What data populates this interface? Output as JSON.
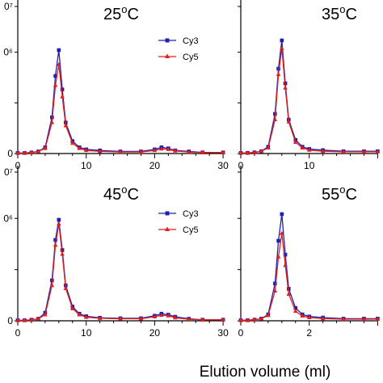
{
  "colors": {
    "cy3": "#1f1fb4",
    "cy5": "#e0201b",
    "axis": "#000000"
  },
  "figure": {
    "xlabel": "Elution volume (ml)"
  },
  "chart_data": [
    {
      "type": "line",
      "title_num": "25",
      "title_deg": "o",
      "title_unit": "C",
      "legend": [
        "Cy3",
        "Cy5"
      ],
      "xlim": [
        0,
        30
      ],
      "xticks": [
        "0",
        "10",
        "20",
        "30"
      ],
      "ytick_labels": [
        "0",
        "",
        "0⁶",
        "0⁷"
      ],
      "series": [
        {
          "name": "Cy3",
          "x": [
            0,
            1,
            2,
            3,
            4,
            5,
            5.5,
            6,
            6.5,
            7,
            8,
            9,
            10,
            12,
            15,
            18,
            20,
            21,
            22,
            23,
            25,
            27,
            30
          ],
          "y": [
            0.005,
            0.005,
            0.01,
            0.02,
            0.06,
            0.35,
            0.75,
            1.0,
            0.62,
            0.3,
            0.12,
            0.06,
            0.04,
            0.03,
            0.02,
            0.02,
            0.04,
            0.06,
            0.05,
            0.03,
            0.02,
            0.01,
            0.01
          ]
        },
        {
          "name": "Cy5",
          "x": [
            0,
            1,
            2,
            3,
            4,
            5,
            5.5,
            6,
            6.5,
            7,
            8,
            9,
            10,
            12,
            15,
            18,
            20,
            21,
            22,
            23,
            25,
            27,
            30
          ],
          "y": [
            0.005,
            0.005,
            0.01,
            0.02,
            0.05,
            0.3,
            0.66,
            0.86,
            0.55,
            0.27,
            0.1,
            0.05,
            0.03,
            0.02,
            0.015,
            0.015,
            0.03,
            0.045,
            0.04,
            0.025,
            0.015,
            0.01,
            0.01
          ]
        }
      ]
    },
    {
      "type": "line",
      "title_num": "35",
      "title_deg": "o",
      "title_unit": "C",
      "legend": [],
      "xlim": [
        0,
        20
      ],
      "xticks": [
        "0",
        "10"
      ],
      "ytick_labels": [
        "",
        "",
        "",
        ""
      ],
      "series": [
        {
          "name": "Cy3",
          "x": [
            0,
            1,
            2,
            3,
            4,
            5,
            5.5,
            6,
            6.5,
            7,
            8,
            9,
            10,
            12,
            15,
            18,
            20
          ],
          "y": [
            0.005,
            0.005,
            0.01,
            0.02,
            0.06,
            0.35,
            0.75,
            1.0,
            0.62,
            0.3,
            0.12,
            0.06,
            0.04,
            0.03,
            0.02,
            0.02,
            0.02
          ]
        },
        {
          "name": "Cy5",
          "x": [
            0,
            1,
            2,
            3,
            4,
            5,
            5.5,
            6,
            6.5,
            7,
            8,
            9,
            10,
            12,
            15,
            18,
            20
          ],
          "y": [
            0.005,
            0.005,
            0.01,
            0.02,
            0.05,
            0.3,
            0.7,
            0.93,
            0.58,
            0.28,
            0.1,
            0.05,
            0.03,
            0.02,
            0.015,
            0.015,
            0.015
          ]
        }
      ]
    },
    {
      "type": "line",
      "title_num": "45",
      "title_deg": "o",
      "title_unit": "C",
      "legend": [
        "Cy3",
        "Cy5"
      ],
      "xlim": [
        0,
        30
      ],
      "xticks": [
        "0",
        "10",
        "20",
        "30"
      ],
      "ytick_labels": [
        "0",
        "",
        "0⁶",
        "0⁷"
      ],
      "series": [
        {
          "name": "Cy3",
          "x": [
            0,
            1,
            2,
            3,
            4,
            5,
            5.5,
            6,
            6.5,
            7,
            8,
            9,
            10,
            12,
            15,
            18,
            20,
            21,
            22,
            23,
            25,
            27,
            30
          ],
          "y": [
            0.005,
            0.005,
            0.01,
            0.02,
            0.08,
            0.4,
            0.8,
            1.0,
            0.7,
            0.35,
            0.14,
            0.07,
            0.045,
            0.03,
            0.025,
            0.025,
            0.05,
            0.07,
            0.06,
            0.04,
            0.02,
            0.01,
            0.01
          ]
        },
        {
          "name": "Cy5",
          "x": [
            0,
            1,
            2,
            3,
            4,
            5,
            5.5,
            6,
            6.5,
            7,
            8,
            9,
            10,
            12,
            15,
            18,
            20,
            21,
            22,
            23,
            25,
            27,
            30
          ],
          "y": [
            0.005,
            0.005,
            0.01,
            0.02,
            0.06,
            0.35,
            0.75,
            0.96,
            0.66,
            0.32,
            0.12,
            0.06,
            0.035,
            0.025,
            0.02,
            0.02,
            0.04,
            0.055,
            0.05,
            0.03,
            0.015,
            0.01,
            0.01
          ]
        }
      ]
    },
    {
      "type": "line",
      "title_num": "55",
      "title_deg": "o",
      "title_unit": "C",
      "legend": [],
      "xlim": [
        0,
        20
      ],
      "xticks": [
        "0",
        "2"
      ],
      "ytick_labels": [
        "",
        "",
        "",
        ""
      ],
      "series": [
        {
          "name": "Cy3",
          "x": [
            0,
            1,
            2,
            3,
            4,
            5,
            5.5,
            6,
            6.5,
            7,
            8,
            9,
            10,
            12,
            15,
            18,
            20
          ],
          "y": [
            0.005,
            0.005,
            0.01,
            0.02,
            0.06,
            0.35,
            0.75,
            1.0,
            0.62,
            0.3,
            0.12,
            0.06,
            0.04,
            0.03,
            0.02,
            0.02,
            0.02
          ]
        },
        {
          "name": "Cy5",
          "x": [
            0,
            1,
            2,
            3,
            4,
            5,
            5.5,
            6,
            6.5,
            7,
            8,
            9,
            10,
            12,
            15,
            18,
            20
          ],
          "y": [
            0.005,
            0.005,
            0.01,
            0.02,
            0.05,
            0.28,
            0.6,
            0.82,
            0.52,
            0.25,
            0.09,
            0.045,
            0.03,
            0.02,
            0.015,
            0.015,
            0.015
          ]
        }
      ]
    }
  ]
}
